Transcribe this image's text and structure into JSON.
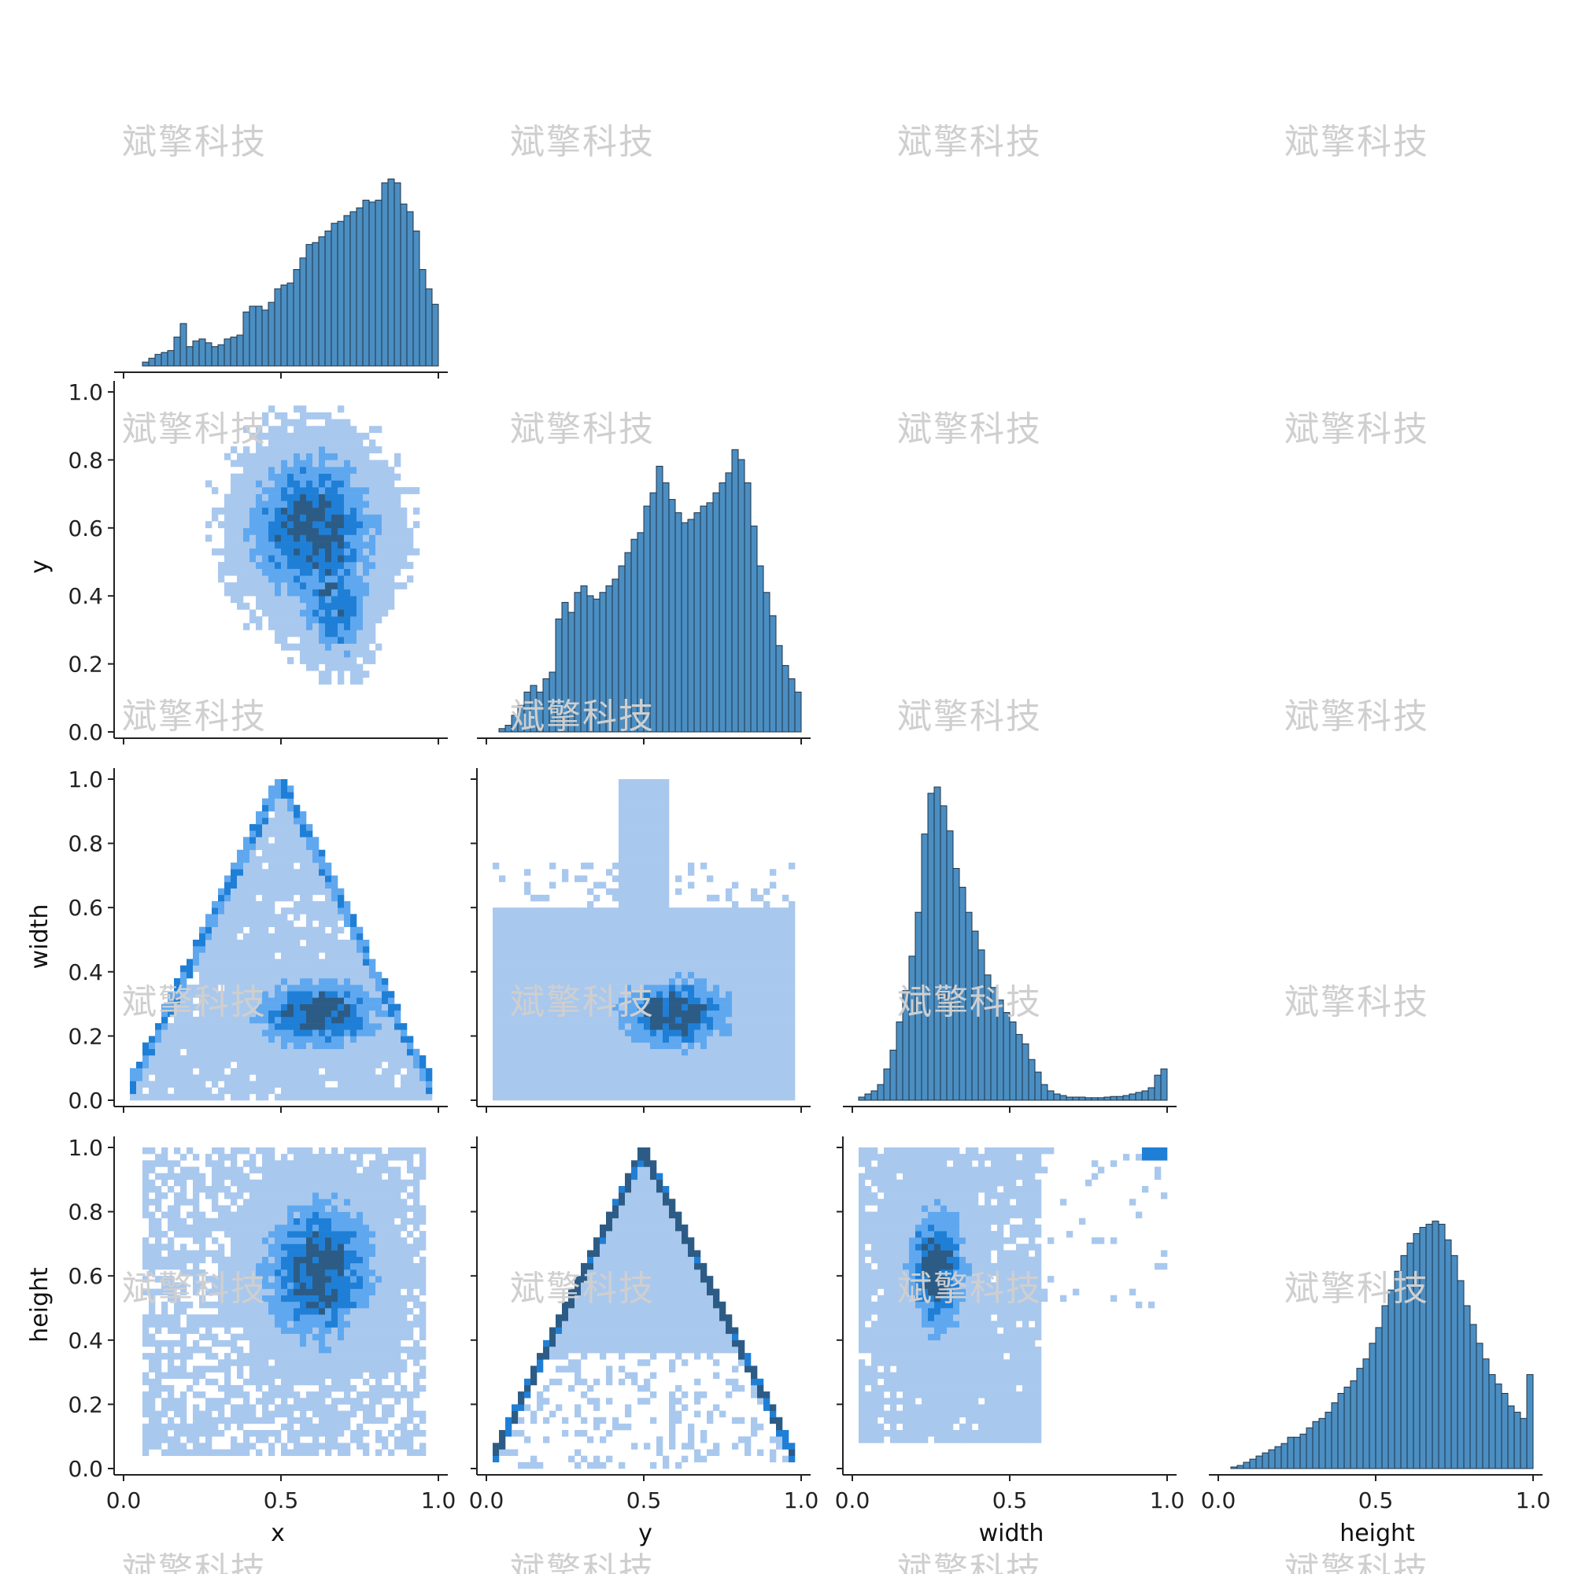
{
  "watermark_text": "斌擎科技",
  "bar_color": "#4b8ec2",
  "bar_edge": "#1f3347",
  "heat_colors": [
    "#a9c8ee",
    "#5fa8ef",
    "#1f7fd6",
    "#2c5c86"
  ],
  "chart_data": {
    "type": "heatmap",
    "variables": [
      "x",
      "y",
      "width",
      "height"
    ],
    "axis_range": [
      0.0,
      1.0
    ],
    "tick_labels": [
      "0.0",
      "0.2",
      "0.4",
      "0.6",
      "0.8",
      "1.0"
    ],
    "bottom_tick_labels": [
      "0.0",
      "0.5",
      "1.0"
    ],
    "bins": 50,
    "histograms": {
      "x": [
        0,
        0,
        0,
        0.02,
        0.04,
        0.06,
        0.07,
        0.08,
        0.15,
        0.22,
        0.1,
        0.13,
        0.14,
        0.12,
        0.1,
        0.11,
        0.14,
        0.15,
        0.16,
        0.28,
        0.31,
        0.31,
        0.29,
        0.33,
        0.4,
        0.42,
        0.43,
        0.5,
        0.56,
        0.63,
        0.64,
        0.67,
        0.7,
        0.74,
        0.75,
        0.78,
        0.8,
        0.82,
        0.86,
        0.85,
        0.86,
        0.95,
        0.97,
        0.95,
        0.84,
        0.8,
        0.7,
        0.5,
        0.4,
        0.32
      ],
      "y": [
        0,
        0,
        0.01,
        0.02,
        0.05,
        0.08,
        0.12,
        0.14,
        0.12,
        0.16,
        0.18,
        0.34,
        0.39,
        0.36,
        0.42,
        0.44,
        0.41,
        0.4,
        0.42,
        0.44,
        0.46,
        0.5,
        0.54,
        0.58,
        0.6,
        0.68,
        0.72,
        0.8,
        0.75,
        0.7,
        0.66,
        0.63,
        0.64,
        0.66,
        0.68,
        0.69,
        0.72,
        0.75,
        0.78,
        0.85,
        0.82,
        0.75,
        0.62,
        0.5,
        0.42,
        0.35,
        0.26,
        0.2,
        0.16,
        0.12
      ],
      "width": [
        0,
        0.01,
        0.02,
        0.03,
        0.05,
        0.1,
        0.16,
        0.25,
        0.35,
        0.46,
        0.6,
        0.85,
        0.98,
        1.0,
        0.94,
        0.86,
        0.74,
        0.68,
        0.6,
        0.54,
        0.48,
        0.4,
        0.36,
        0.32,
        0.28,
        0.25,
        0.21,
        0.18,
        0.13,
        0.09,
        0.05,
        0.03,
        0.02,
        0.015,
        0.01,
        0.01,
        0.01,
        0.008,
        0.008,
        0.008,
        0.01,
        0.012,
        0.012,
        0.015,
        0.02,
        0.025,
        0.03,
        0.04,
        0.08,
        0.1
      ],
      "height": [
        0,
        0,
        0.005,
        0.01,
        0.02,
        0.03,
        0.04,
        0.05,
        0.06,
        0.07,
        0.08,
        0.1,
        0.1,
        0.11,
        0.13,
        0.15,
        0.16,
        0.18,
        0.21,
        0.24,
        0.26,
        0.28,
        0.32,
        0.35,
        0.4,
        0.45,
        0.52,
        0.57,
        0.63,
        0.68,
        0.72,
        0.75,
        0.77,
        0.78,
        0.79,
        0.78,
        0.73,
        0.68,
        0.6,
        0.52,
        0.46,
        0.4,
        0.35,
        0.3,
        0.27,
        0.24,
        0.2,
        0.18,
        0.16,
        0.3
      ]
    },
    "pairs": [
      {
        "x": "x",
        "y": "y",
        "row": 1,
        "col": 0
      },
      {
        "x": "x",
        "y": "width",
        "row": 2,
        "col": 0
      },
      {
        "x": "y",
        "y": "width",
        "row": 2,
        "col": 1
      },
      {
        "x": "x",
        "y": "height",
        "row": 3,
        "col": 0
      },
      {
        "x": "y",
        "y": "height",
        "row": 3,
        "col": 1
      },
      {
        "x": "width",
        "y": "height",
        "row": 3,
        "col": 2
      }
    ]
  }
}
